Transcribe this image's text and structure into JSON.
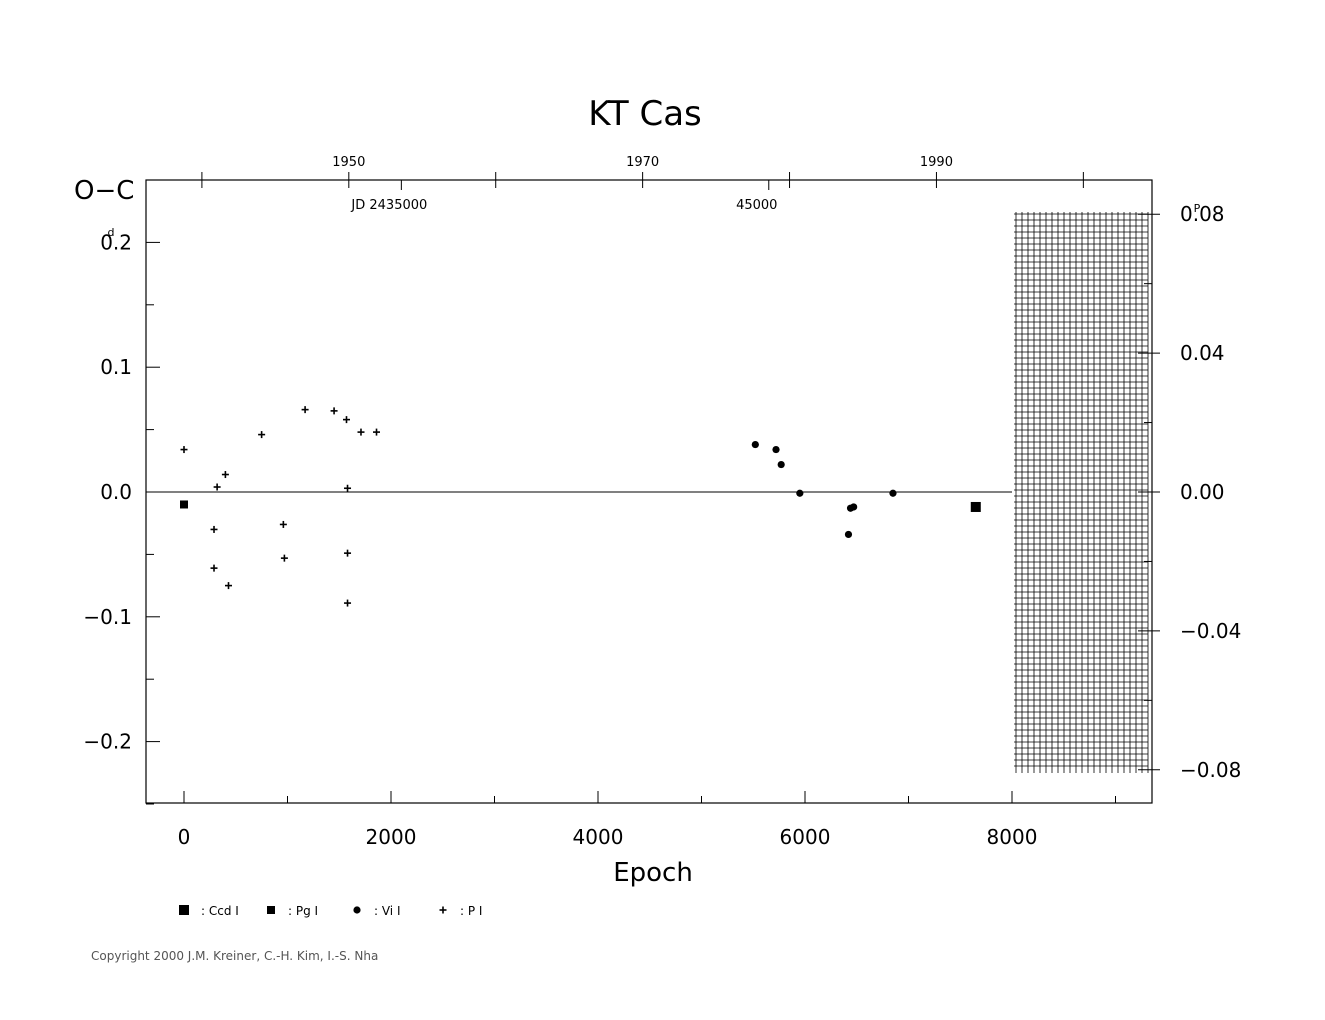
{
  "chart_data": {
    "type": "scatter",
    "title": "KT  Cas",
    "xlabel": "Epoch",
    "ylabel": "O−C",
    "ylabel_unit": "d",
    "y2_unit": "P",
    "xlim": [
      -370,
      9300
    ],
    "ylim": [
      -0.25,
      0.25
    ],
    "x_ticks": [
      0,
      2000,
      4000,
      6000,
      8000
    ],
    "x_tick_labels": [
      "0",
      "2000",
      "4000",
      "6000",
      "8000"
    ],
    "y_ticks": [
      0.2,
      0.1,
      0.0,
      -0.1,
      -0.2
    ],
    "y_tick_labels": [
      "0.2",
      "0.1",
      "0.0",
      "−0.1",
      "−0.2"
    ],
    "y2_ticks": [
      0.08,
      0.04,
      0.0,
      -0.04,
      -0.08
    ],
    "y2_tick_labels": [
      "0.08",
      "0.04",
      "0.00",
      "−0.04",
      "−0.08"
    ],
    "y2_per_y": 0.3594,
    "top_year_ticks": [
      1940,
      1950,
      1960,
      1970,
      1980,
      1990,
      2000
    ],
    "top_year_labels": [
      {
        "year": 1950,
        "label": "1950"
      },
      {
        "year": 1970,
        "label": "1970"
      },
      {
        "year": 1990,
        "label": "1990"
      }
    ],
    "top_year_epochs": {
      "1940": 173,
      "1990": 7270
    },
    "jd_ticks": [
      {
        "epoch": 2100,
        "label": "JD  2435000"
      },
      {
        "epoch": 5650,
        "label": "45000"
      }
    ],
    "future_region_start": 8000,
    "series": [
      {
        "name": "Ccd I",
        "marker": "square-large",
        "points": [
          [
            7650,
            -0.012
          ]
        ]
      },
      {
        "name": "Pg I",
        "marker": "square-small",
        "points": [
          [
            0,
            -0.01
          ]
        ]
      },
      {
        "name": "Vi I",
        "marker": "circle",
        "points": [
          [
            5520,
            0.038
          ],
          [
            5720,
            0.034
          ],
          [
            5770,
            0.022
          ],
          [
            5950,
            -0.001
          ],
          [
            6420,
            -0.034
          ],
          [
            6440,
            -0.013
          ],
          [
            6470,
            -0.012
          ],
          [
            6850,
            -0.001
          ]
        ]
      },
      {
        "name": "P I",
        "marker": "plus",
        "points": [
          [
            0,
            0.034
          ],
          [
            290,
            -0.03
          ],
          [
            290,
            -0.061
          ],
          [
            320,
            0.004
          ],
          [
            400,
            0.014
          ],
          [
            430,
            -0.075
          ],
          [
            750,
            0.046
          ],
          [
            960,
            -0.026
          ],
          [
            970,
            -0.053
          ],
          [
            1170,
            0.066
          ],
          [
            1450,
            0.065
          ],
          [
            1570,
            0.058
          ],
          [
            1580,
            0.003
          ],
          [
            1580,
            -0.049
          ],
          [
            1580,
            -0.089
          ],
          [
            1710,
            0.048
          ],
          [
            1860,
            0.048
          ]
        ]
      }
    ],
    "legend": {
      "placement": "bottom-left",
      "items": [
        {
          "marker": "square-large",
          "label": ": Ccd  I"
        },
        {
          "marker": "square-small",
          "label": ": Pg  I"
        },
        {
          "marker": "circle",
          "label": ": Vi  I"
        },
        {
          "marker": "plus",
          "label": ": P  I"
        }
      ]
    }
  },
  "copyright": "Copyright 2000 J.M. Kreiner, C.-H. Kim, I.-S. Nha"
}
